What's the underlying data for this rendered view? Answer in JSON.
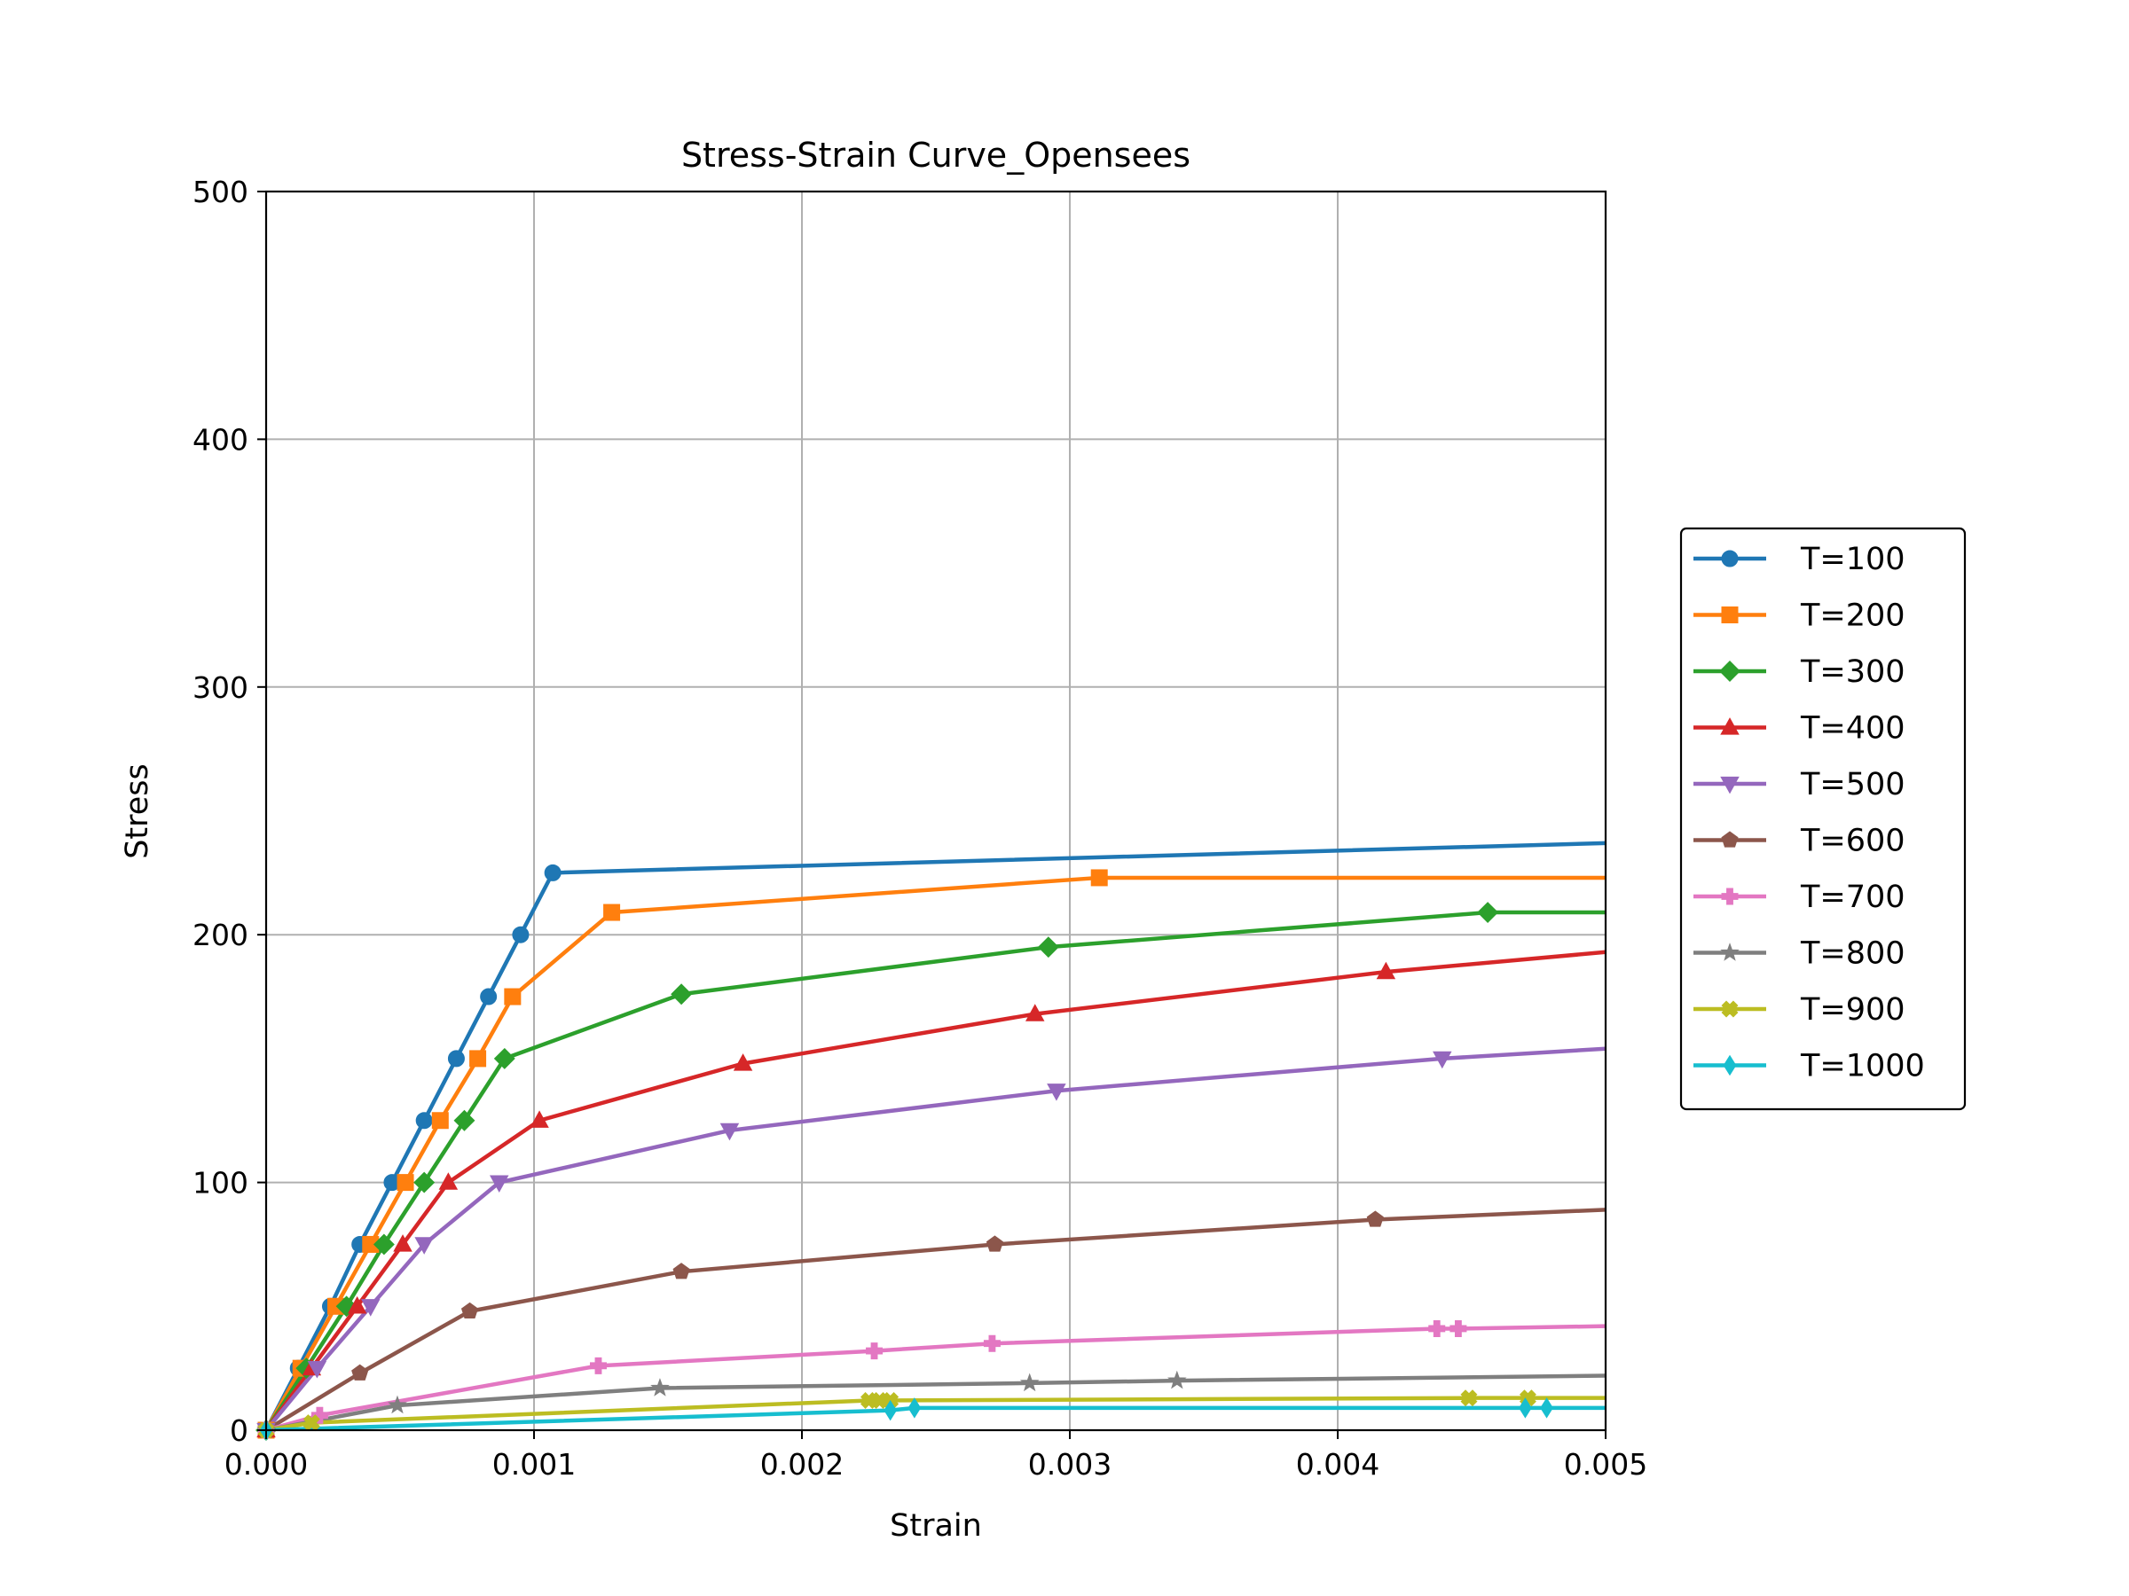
{
  "chart_data": {
    "type": "line",
    "title": "Stress-Strain Curve_Opensees",
    "xlabel": "Strain",
    "ylabel": "Stress",
    "xlim": [
      0,
      0.005
    ],
    "ylim": [
      0,
      500
    ],
    "xticks": [
      "0.000",
      "0.001",
      "0.002",
      "0.003",
      "0.004",
      "0.005"
    ],
    "yticks": [
      "0",
      "100",
      "200",
      "300",
      "400",
      "500"
    ],
    "grid": true,
    "legend_position": "right, outside plot",
    "series": [
      {
        "name": "T=100",
        "color": "#1f77b4",
        "marker": "circle",
        "x": [
          0,
          0.00012,
          0.00024,
          0.00035,
          0.00047,
          0.00059,
          0.00071,
          0.00083,
          0.00095,
          0.00107,
          0.005
        ],
        "y": [
          0,
          25,
          50,
          75,
          100,
          125,
          150,
          175,
          200,
          225,
          237
        ]
      },
      {
        "name": "T=200",
        "color": "#ff7f0e",
        "marker": "square",
        "x": [
          0,
          0.00013,
          0.00026,
          0.00039,
          0.00052,
          0.00065,
          0.00079,
          0.00092,
          0.00129,
          0.00311,
          0.005
        ],
        "y": [
          0,
          25,
          50,
          75,
          100,
          125,
          150,
          175,
          209,
          223,
          223
        ]
      },
      {
        "name": "T=300",
        "color": "#2ca02c",
        "marker": "diamond",
        "x": [
          0,
          0.00015,
          0.0003,
          0.00044,
          0.00059,
          0.00074,
          0.00089,
          0.00155,
          0.00292,
          0.00456,
          0.005
        ],
        "y": [
          0,
          25,
          50,
          75,
          100,
          125,
          150,
          176,
          195,
          209,
          209
        ]
      },
      {
        "name": "T=400",
        "color": "#d62728",
        "marker": "triangle-up",
        "x": [
          0,
          0.00017,
          0.00034,
          0.00051,
          0.00068,
          0.00102,
          0.00178,
          0.00287,
          0.00418,
          0.005
        ],
        "y": [
          0,
          25,
          50,
          75,
          100,
          125,
          148,
          168,
          185,
          193
        ]
      },
      {
        "name": "T=500",
        "color": "#9467bd",
        "marker": "triangle-down",
        "x": [
          0,
          0.00019,
          0.00039,
          0.00059,
          0.00087,
          0.00173,
          0.00295,
          0.00439,
          0.005
        ],
        "y": [
          0,
          25,
          50,
          75,
          100,
          121,
          137,
          150,
          154
        ]
      },
      {
        "name": "T=600",
        "color": "#8c564b",
        "marker": "pentagon",
        "x": [
          0,
          0.00035,
          0.00076,
          0.00155,
          0.00272,
          0.00414,
          0.005
        ],
        "y": [
          0,
          23,
          48,
          64,
          75,
          85,
          89
        ]
      },
      {
        "name": "T=700",
        "color": "#e377c2",
        "marker": "plus-filled",
        "x": [
          0,
          0.0002,
          0.00124,
          0.00227,
          0.00271,
          0.00437,
          0.00445,
          0.005
        ],
        "y": [
          0,
          6,
          26,
          32,
          35,
          41,
          41,
          42
        ]
      },
      {
        "name": "T=800",
        "color": "#7f7f7f",
        "marker": "star",
        "x": [
          0,
          0.00049,
          0.00147,
          0.00285,
          0.0034,
          0.005
        ],
        "y": [
          0,
          10,
          17,
          19,
          20,
          22
        ]
      },
      {
        "name": "T=900",
        "color": "#bcbd22",
        "marker": "x-filled",
        "x": [
          0,
          0.00017,
          0.00225,
          0.00229,
          0.00233,
          0.00449,
          0.00471,
          0.005
        ],
        "y": [
          0,
          3,
          12,
          12,
          12,
          13,
          13,
          13
        ]
      },
      {
        "name": "T=1000",
        "color": "#17becf",
        "marker": "thin-diamond",
        "x": [
          0,
          0.00233,
          0.00242,
          0.0047,
          0.00478,
          0.005
        ],
        "y": [
          0,
          8,
          9,
          9,
          9,
          9
        ]
      }
    ]
  }
}
